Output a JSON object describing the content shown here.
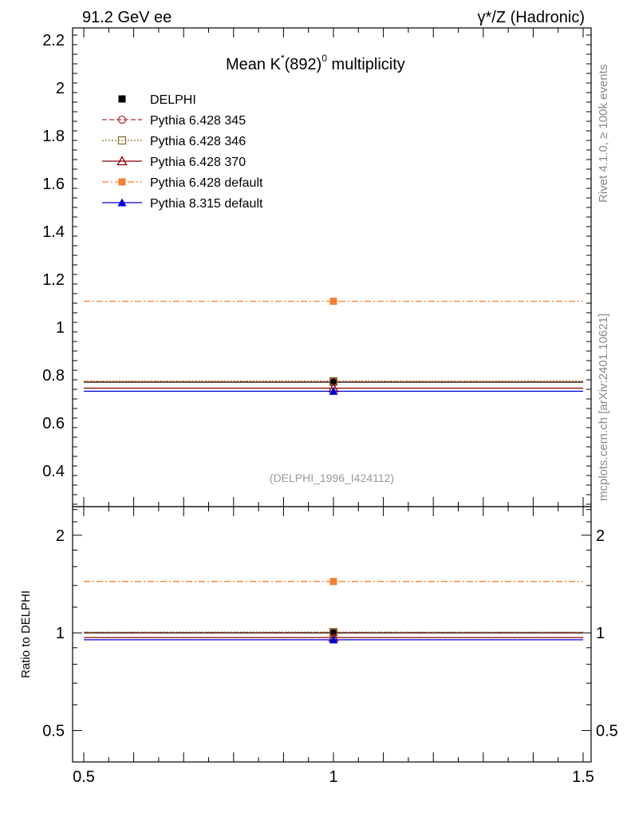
{
  "header": {
    "left": "91.2 GeV ee",
    "right": "γ*/Z (Hadronic)"
  },
  "side_labels": {
    "rivet": "Rivet 4.1.0, ≥ 100k events",
    "mcplots": "mcplots.cern.ch [arXiv:2401.10621]"
  },
  "title": {
    "prefix": "Mean K",
    "sup1": "*",
    "middle": "(892)",
    "sup2": "0",
    "suffix": " multiplicity"
  },
  "analysis_id": "(DELPHI_1996_I424112)",
  "ratio_ylabel": "Ratio to DELPHI",
  "chart_data": [
    {
      "panel": "main",
      "type": "scatter",
      "xlim": [
        0.5,
        1.5
      ],
      "ylim": [
        0.25,
        2.25
      ],
      "yticks_major": [
        0.4,
        0.6,
        0.8,
        1.0,
        1.2,
        1.4,
        1.6,
        1.8,
        2.0,
        2.2
      ],
      "ytick_labels": [
        "0.4",
        "0.6",
        "0.8",
        "1",
        "1.2",
        "1.4",
        "1.6",
        "1.8",
        "2",
        "2.2"
      ],
      "legend_position": "top-left",
      "series": [
        {
          "name": "DELPHI",
          "x": 1.0,
          "y": 0.77,
          "x_range": [
            0.5,
            1.5
          ],
          "color": "#000000",
          "marker": "filled-square",
          "line": "none"
        },
        {
          "name": "Pythia 6.428 345",
          "x": 1.0,
          "y": 0.772,
          "x_range": [
            0.5,
            1.5
          ],
          "color": "#b03030",
          "marker": "open-circle",
          "line": "dashed"
        },
        {
          "name": "Pythia 6.428 346",
          "x": 1.0,
          "y": 0.774,
          "x_range": [
            0.5,
            1.5
          ],
          "color": "#8c6e2a",
          "marker": "open-square",
          "line": "dotted"
        },
        {
          "name": "Pythia 6.428 370",
          "x": 1.0,
          "y": 0.745,
          "x_range": [
            0.5,
            1.5
          ],
          "color": "#8b0000",
          "marker": "open-triangle",
          "line": "solid"
        },
        {
          "name": "Pythia 6.428 default",
          "x": 1.0,
          "y": 1.108,
          "x_range": [
            0.5,
            1.5
          ],
          "color": "#f57f2e",
          "marker": "filled-square",
          "line": "dashdot"
        },
        {
          "name": "Pythia 8.315 default",
          "x": 1.0,
          "y": 0.732,
          "x_range": [
            0.5,
            1.5
          ],
          "color": "#0000dd",
          "marker": "filled-triangle",
          "line": "solid"
        }
      ]
    },
    {
      "panel": "ratio",
      "type": "scatter",
      "ylabel": "Ratio to DELPHI",
      "xlim": [
        0.5,
        1.5
      ],
      "ylim": [
        0.4,
        2.45
      ],
      "yscale": "log",
      "xticks_major": [
        0.5,
        1.0,
        1.5
      ],
      "xtick_labels": [
        "0.5",
        "1",
        "1.5"
      ],
      "yticks_major": [
        0.5,
        1,
        2
      ],
      "ytick_labels": [
        "0.5",
        "1",
        "2"
      ],
      "series": [
        {
          "name": "DELPHI",
          "y": 1.0,
          "color": "#000000"
        },
        {
          "name": "Pythia 6.428 345",
          "y": 1.003,
          "color": "#b03030"
        },
        {
          "name": "Pythia 6.428 346",
          "y": 1.005,
          "color": "#8c6e2a"
        },
        {
          "name": "Pythia 6.428 370",
          "y": 0.967,
          "color": "#8b0000"
        },
        {
          "name": "Pythia 6.428 default",
          "y": 1.44,
          "color": "#f57f2e"
        },
        {
          "name": "Pythia 8.315 default",
          "y": 0.952,
          "color": "#0000dd"
        }
      ]
    }
  ]
}
